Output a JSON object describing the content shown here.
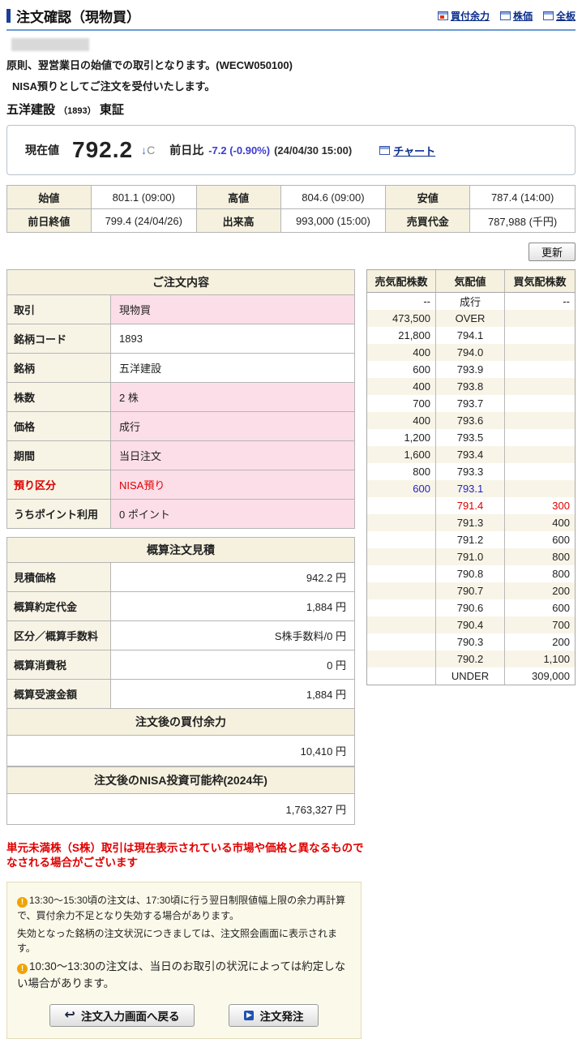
{
  "header": {
    "title": "注文確認（現物買）",
    "links": [
      {
        "label": "買付余力",
        "icon": "buying-power-window-icon"
      },
      {
        "label": "株価",
        "icon": "stock-price-window-icon"
      },
      {
        "label": "全板",
        "icon": "full-board-window-icon"
      }
    ],
    "notice1": "原則、翌営業日の始値での取引となります。(WECW050100)",
    "notice2": "NISA預りとしてご注文を受付いたします。",
    "stock_name": "五洋建設",
    "stock_code": "（1893）",
    "stock_market": "東証"
  },
  "price_panel": {
    "label": "現在値",
    "price": "792.2",
    "arrow": "↓",
    "flag": "C",
    "change_label": "前日比",
    "change": "-7.2 (-0.90%)",
    "timestamp": "(24/04/30 15:00)",
    "chart_link": "チャート"
  },
  "market_table": {
    "rows": [
      [
        {
          "label": "始値",
          "value": "801.1 (09:00)"
        },
        {
          "label": "高値",
          "value": "804.6 (09:00)"
        },
        {
          "label": "安値",
          "value": "787.4 (14:00)"
        }
      ],
      [
        {
          "label": "前日終値",
          "value": "799.4 (24/04/26)"
        },
        {
          "label": "出来高",
          "value": "993,000 (15:00)"
        },
        {
          "label": "売買代金",
          "value": "787,988 (千円)"
        }
      ]
    ]
  },
  "refresh_button": "更新",
  "order_details": {
    "title": "ご注文内容",
    "rows": [
      {
        "label": "取引",
        "value": "現物買",
        "highlight": true,
        "red": false
      },
      {
        "label": "銘柄コード",
        "value": "1893",
        "highlight": false,
        "red": false
      },
      {
        "label": "銘柄",
        "value": "五洋建設",
        "highlight": false,
        "red": false
      },
      {
        "label": "株数",
        "value": "2 株",
        "highlight": true,
        "red": false
      },
      {
        "label": "価格",
        "value": "成行",
        "highlight": true,
        "red": false
      },
      {
        "label": "期間",
        "value": "当日注文",
        "highlight": true,
        "red": false
      },
      {
        "label": "預り区分",
        "value": "NISA預り",
        "highlight": true,
        "red": true
      },
      {
        "label": "うちポイント利用",
        "value": "0 ポイント",
        "highlight": true,
        "red": false
      }
    ]
  },
  "estimate": {
    "title": "概算注文見積",
    "rows": [
      {
        "label": "見積価格",
        "value": "942.2 円"
      },
      {
        "label": "概算約定代金",
        "value": "1,884 円"
      },
      {
        "label": "区分／概算手数料",
        "value": "S株手数料/0 円"
      },
      {
        "label": "概算消費税",
        "value": "0 円"
      },
      {
        "label": "概算受渡金額",
        "value": "1,884 円"
      }
    ],
    "buying_power_title": "注文後の買付余力",
    "buying_power_value": "10,410 円",
    "nisa_title": "注文後のNISA投資可能枠(2024年)",
    "nisa_value": "1,763,327 円"
  },
  "orderbook": {
    "headers": [
      "売気配株数",
      "気配値",
      "買気配株数"
    ],
    "rows": [
      {
        "sell": "--",
        "price": "成行",
        "buy": "--",
        "highlight": ""
      },
      {
        "sell": "473,500",
        "price": "OVER",
        "buy": "",
        "highlight": ""
      },
      {
        "sell": "21,800",
        "price": "794.1",
        "buy": "",
        "highlight": ""
      },
      {
        "sell": "400",
        "price": "794.0",
        "buy": "",
        "highlight": ""
      },
      {
        "sell": "600",
        "price": "793.9",
        "buy": "",
        "highlight": ""
      },
      {
        "sell": "400",
        "price": "793.8",
        "buy": "",
        "highlight": ""
      },
      {
        "sell": "700",
        "price": "793.7",
        "buy": "",
        "highlight": ""
      },
      {
        "sell": "400",
        "price": "793.6",
        "buy": "",
        "highlight": ""
      },
      {
        "sell": "1,200",
        "price": "793.5",
        "buy": "",
        "highlight": ""
      },
      {
        "sell": "1,600",
        "price": "793.4",
        "buy": "",
        "highlight": ""
      },
      {
        "sell": "800",
        "price": "793.3",
        "buy": "",
        "highlight": ""
      },
      {
        "sell": "600",
        "price": "793.1",
        "buy": "",
        "highlight": "blue"
      },
      {
        "sell": "",
        "price": "791.4",
        "buy": "300",
        "highlight": "red"
      },
      {
        "sell": "",
        "price": "791.3",
        "buy": "400",
        "highlight": ""
      },
      {
        "sell": "",
        "price": "791.2",
        "buy": "600",
        "highlight": ""
      },
      {
        "sell": "",
        "price": "791.0",
        "buy": "800",
        "highlight": ""
      },
      {
        "sell": "",
        "price": "790.8",
        "buy": "800",
        "highlight": ""
      },
      {
        "sell": "",
        "price": "790.7",
        "buy": "200",
        "highlight": ""
      },
      {
        "sell": "",
        "price": "790.6",
        "buy": "600",
        "highlight": ""
      },
      {
        "sell": "",
        "price": "790.4",
        "buy": "700",
        "highlight": ""
      },
      {
        "sell": "",
        "price": "790.3",
        "buy": "200",
        "highlight": ""
      },
      {
        "sell": "",
        "price": "790.2",
        "buy": "1,100",
        "highlight": ""
      },
      {
        "sell": "",
        "price": "UNDER",
        "buy": "309,000",
        "highlight": ""
      }
    ]
  },
  "warning": "単元未満株（S株）取引は現在表示されている市場や価格と異なるものでなされる場合がございます",
  "notes": [
    {
      "icon": true,
      "size": "s",
      "text": "13:30〜15:30頃の注文は、17:30頃に行う翌日制限値幅上限の余力再計算で、買付余力不足となり失効する場合があります。"
    },
    {
      "icon": false,
      "size": "s",
      "text": "失効となった銘柄の注文状況につきましては、注文照会画面に表示されます。"
    },
    {
      "icon": true,
      "size": "l",
      "text": "10:30〜13:30の注文は、当日のお取引の状況によっては約定しない場合があります。"
    }
  ],
  "buttons": {
    "back": "注文入力画面へ戻る",
    "submit": "注文発注"
  },
  "icons": {
    "warning_glyph": "!",
    "back_arrow_glyph": "↩",
    "submit_glyph": "▶"
  },
  "colors": {
    "accent_navy": "#1b3f94",
    "link_navy": "#0b2e8c",
    "change_blue": "#3b3bd0",
    "alert_red": "#dd0000",
    "bid_red": "#e00000",
    "ask_blue": "#2222cc",
    "pink_highlight": "#fcdee9",
    "cream_header": "#f5f1de",
    "note_box_bg": "#fbf9ea"
  }
}
